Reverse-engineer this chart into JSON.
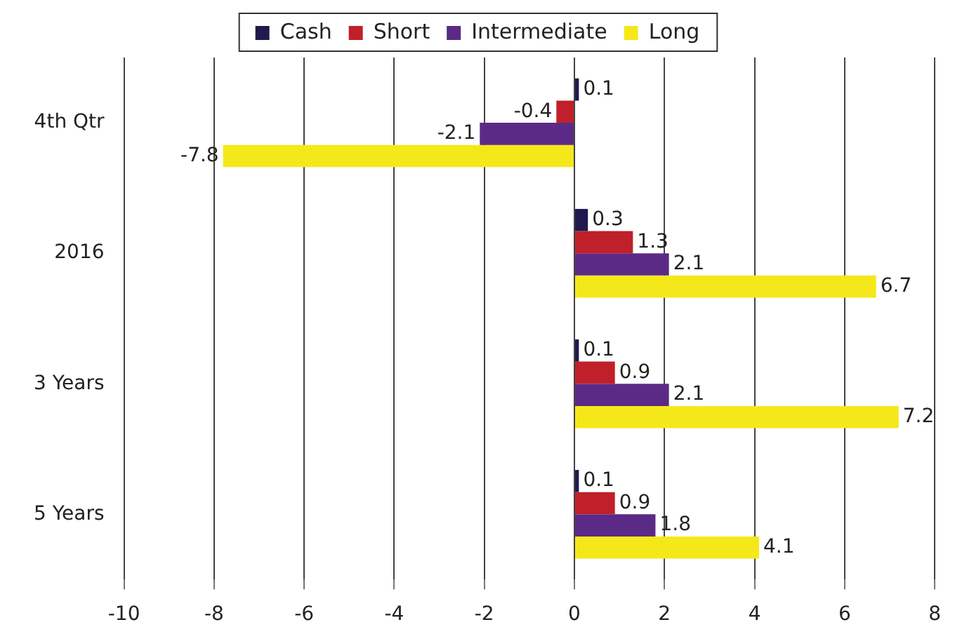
{
  "chart_data": {
    "type": "bar",
    "orientation": "horizontal",
    "categories": [
      "4th Qtr",
      "2016",
      "3 Years",
      "5 Years"
    ],
    "series": [
      {
        "name": "Cash",
        "color": "#1e1a4d",
        "values": [
          0.1,
          0.3,
          0.1,
          0.1
        ]
      },
      {
        "name": "Short",
        "color": "#c0202a",
        "values": [
          -0.4,
          1.3,
          0.9,
          0.9
        ]
      },
      {
        "name": "Intermediate",
        "color": "#5b2a86",
        "values": [
          -2.1,
          2.1,
          2.1,
          1.8
        ]
      },
      {
        "name": "Long",
        "color": "#f5e81a",
        "values": [
          -7.8,
          6.7,
          7.2,
          4.1
        ]
      }
    ],
    "xlim": [
      -10,
      8
    ],
    "xticks": [
      -10,
      -8,
      -6,
      -4,
      -2,
      0,
      2,
      4,
      6,
      8
    ],
    "grid": "x",
    "legend": "top",
    "data_labels": true
  }
}
